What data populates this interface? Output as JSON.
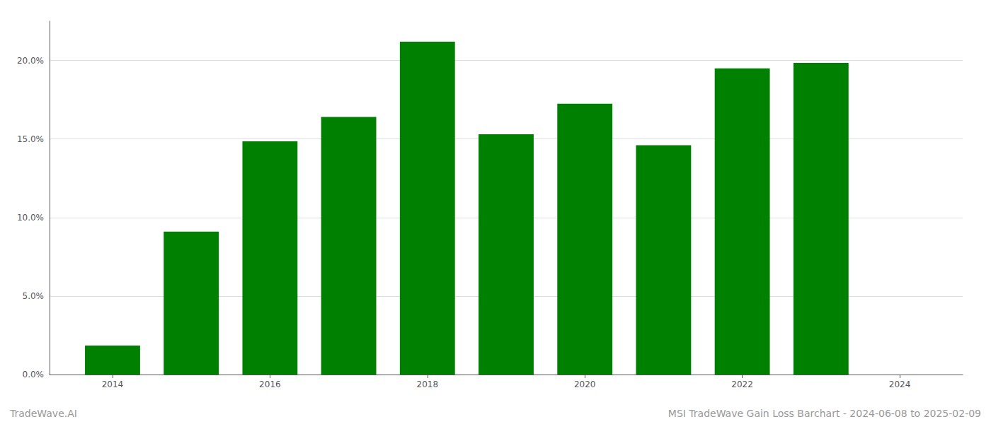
{
  "chart_data": {
    "type": "bar",
    "x": [
      2014,
      2015,
      2016,
      2017,
      2018,
      2019,
      2020,
      2021,
      2022,
      2023
    ],
    "values": [
      1.85,
      9.1,
      14.85,
      16.4,
      21.2,
      15.3,
      17.25,
      14.6,
      19.5,
      19.85
    ],
    "color": "#008000",
    "xlim": [
      2013.2,
      2024.8
    ],
    "xticks": [
      2014,
      2016,
      2018,
      2020,
      2022,
      2024
    ],
    "ylim": [
      0,
      22.5
    ],
    "yticks": [
      {
        "value": 0.0,
        "label": "0.0%"
      },
      {
        "value": 5.0,
        "label": "5.0%"
      },
      {
        "value": 10.0,
        "label": "10.0%"
      },
      {
        "value": 15.0,
        "label": "15.0%"
      },
      {
        "value": 20.0,
        "label": "20.0%"
      }
    ],
    "grid": true,
    "annotations": [
      "TradeWave.AI",
      "MSI TradeWave Gain Loss Barchart - 2024-06-08 to 2025-02-09"
    ]
  }
}
